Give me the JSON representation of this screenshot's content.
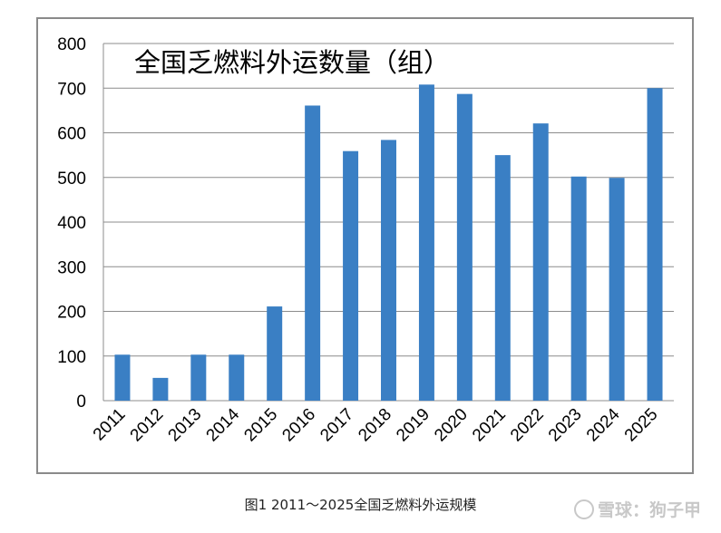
{
  "chart_data": {
    "type": "bar",
    "title": "全国乏燃料外运数量（组）",
    "categories": [
      "2011",
      "2012",
      "2013",
      "2014",
      "2015",
      "2016",
      "2017",
      "2018",
      "2019",
      "2020",
      "2021",
      "2022",
      "2023",
      "2024",
      "2025"
    ],
    "values": [
      103,
      51,
      103,
      103,
      211,
      661,
      559,
      584,
      708,
      687,
      550,
      621,
      502,
      499,
      700
    ],
    "ylim": [
      0,
      800
    ],
    "yticks": [
      0,
      100,
      200,
      300,
      400,
      500,
      600,
      700,
      800
    ],
    "grid": true,
    "bar_color": "#3a7fc4",
    "legend": "none"
  },
  "caption": "图1  2011～2025全国乏燃料外运规模",
  "watermark": "雪球：狗子甲"
}
